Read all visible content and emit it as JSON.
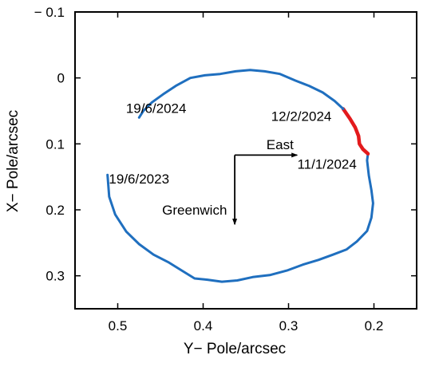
{
  "chart_data": {
    "type": "line",
    "xlabel": "Y− Pole/arcsec",
    "ylabel": "X− Pole/arcsec",
    "xlim": [
      0.55,
      0.15
    ],
    "ylim": [
      -0.1,
      0.35
    ],
    "x_reversed": true,
    "y_reversed": true,
    "xticks": [
      0.5,
      0.4,
      0.3,
      0.2
    ],
    "xtick_labels": [
      "0.5",
      "0.4",
      "0.3",
      "0.2"
    ],
    "yticks": [
      -0.1,
      0,
      0.1,
      0.2,
      0.3
    ],
    "ytick_labels": [
      "− 0.1",
      "0",
      "0.1",
      "0.2",
      "0.3"
    ],
    "grid": false,
    "series": [
      {
        "color": "#1f6fbf",
        "points": [
          [
            0.512,
            0.147
          ],
          [
            0.51,
            0.18
          ],
          [
            0.503,
            0.207
          ],
          [
            0.49,
            0.233
          ],
          [
            0.475,
            0.252
          ],
          [
            0.458,
            0.268
          ],
          [
            0.44,
            0.28
          ],
          [
            0.425,
            0.292
          ],
          [
            0.41,
            0.304
          ],
          [
            0.395,
            0.306
          ],
          [
            0.378,
            0.309
          ],
          [
            0.36,
            0.307
          ],
          [
            0.342,
            0.302
          ],
          [
            0.322,
            0.299
          ],
          [
            0.302,
            0.292
          ],
          [
            0.283,
            0.283
          ],
          [
            0.265,
            0.276
          ],
          [
            0.248,
            0.268
          ],
          [
            0.232,
            0.26
          ],
          [
            0.22,
            0.248
          ],
          [
            0.208,
            0.232
          ],
          [
            0.203,
            0.212
          ],
          [
            0.201,
            0.19
          ],
          [
            0.203,
            0.17
          ],
          [
            0.206,
            0.148
          ],
          [
            0.208,
            0.125
          ],
          [
            0.207,
            0.115
          ]
        ]
      },
      {
        "color": "#e31a1c",
        "points": [
          [
            0.207,
            0.115
          ],
          [
            0.213,
            0.108
          ],
          [
            0.217,
            0.1
          ],
          [
            0.218,
            0.088
          ],
          [
            0.222,
            0.075
          ],
          [
            0.228,
            0.062
          ],
          [
            0.236,
            0.047
          ]
        ]
      },
      {
        "color": "#1f6fbf",
        "points": [
          [
            0.236,
            0.047
          ],
          [
            0.246,
            0.035
          ],
          [
            0.26,
            0.022
          ],
          [
            0.276,
            0.012
          ],
          [
            0.292,
            0.004
          ],
          [
            0.31,
            -0.006
          ],
          [
            0.328,
            -0.01
          ],
          [
            0.345,
            -0.012
          ],
          [
            0.362,
            -0.01
          ],
          [
            0.38,
            -0.006
          ],
          [
            0.398,
            -0.004
          ],
          [
            0.415,
            0.0
          ],
          [
            0.432,
            0.012
          ],
          [
            0.447,
            0.025
          ],
          [
            0.46,
            0.037
          ],
          [
            0.47,
            0.05
          ],
          [
            0.475,
            0.06
          ]
        ]
      }
    ],
    "annotations": [
      {
        "text": "19/6/2024",
        "x": 0.455,
        "y": 0.053
      },
      {
        "text": "12/2/2024",
        "x": 0.285,
        "y": 0.065
      },
      {
        "text": "East",
        "x": 0.31,
        "y": 0.108
      },
      {
        "text": "11/1/2024",
        "x": 0.255,
        "y": 0.138
      },
      {
        "text": "19/6/2023",
        "x": 0.475,
        "y": 0.16
      },
      {
        "text": "Greenwich",
        "x": 0.41,
        "y": 0.207
      }
    ],
    "arrows": [
      {
        "name": "east",
        "from": [
          0.363,
          0.117
        ],
        "to": [
          0.29,
          0.117
        ]
      },
      {
        "name": "greenwich",
        "from": [
          0.363,
          0.117
        ],
        "to": [
          0.363,
          0.222
        ]
      }
    ]
  }
}
